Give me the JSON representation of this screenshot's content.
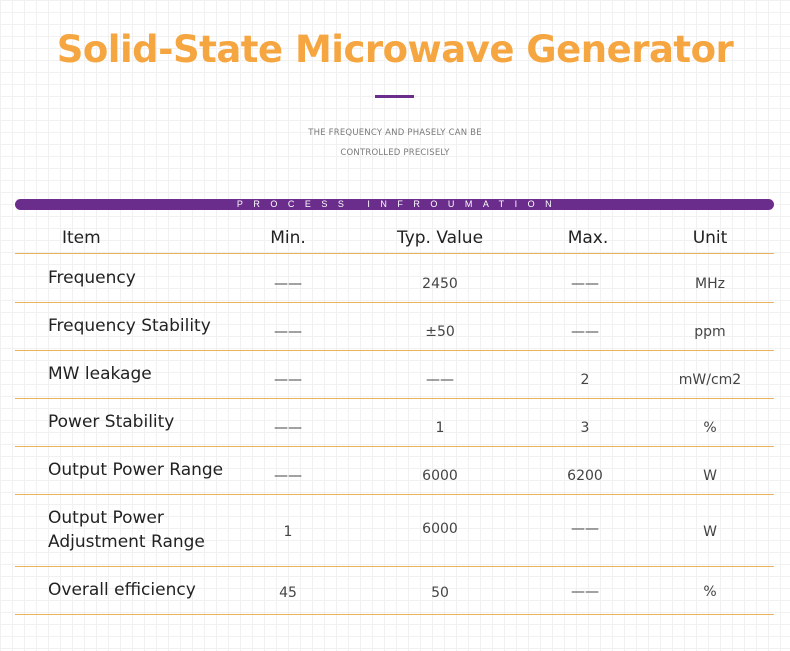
{
  "header": {
    "title": "Solid-State Microwave Generator",
    "subtitle_line1": "THE FREQUENCY AND PHASELY CAN BE",
    "subtitle_line2": "CONTROLLED PRECISELY"
  },
  "banner": {
    "label": "PROCESS INFROUMATION"
  },
  "colors": {
    "title": "#f5a640",
    "accent": "#6b2d8c",
    "rule": "#e8b25f"
  },
  "table": {
    "columns": [
      "Item",
      "Min.",
      "Typ. Value",
      "Max.",
      "Unit"
    ],
    "rows": [
      {
        "item": "Frequency",
        "min": "——",
        "typ": "2450",
        "max": "——",
        "unit": "MHz"
      },
      {
        "item": "Frequency Stability",
        "min": "——",
        "typ": "±50",
        "max": "——",
        "unit": "ppm"
      },
      {
        "item": "MW leakage",
        "min": "——",
        "typ": "——",
        "max": "2",
        "unit": "mW/cm2"
      },
      {
        "item": "Power Stability",
        "min": "——",
        "typ": "1",
        "max": "3",
        "unit": "%"
      },
      {
        "item": "Output Power Range",
        "min": "——",
        "typ": "6000",
        "max": "6200",
        "unit": "W"
      },
      {
        "item_line1": "Output Power",
        "item_line2": "Adjustment Range",
        "min": "1",
        "typ": "6000",
        "max": "——",
        "unit": "W"
      },
      {
        "item": "Overall efficiency",
        "min": "45",
        "typ": "50",
        "max": "——",
        "unit": "%"
      }
    ]
  }
}
